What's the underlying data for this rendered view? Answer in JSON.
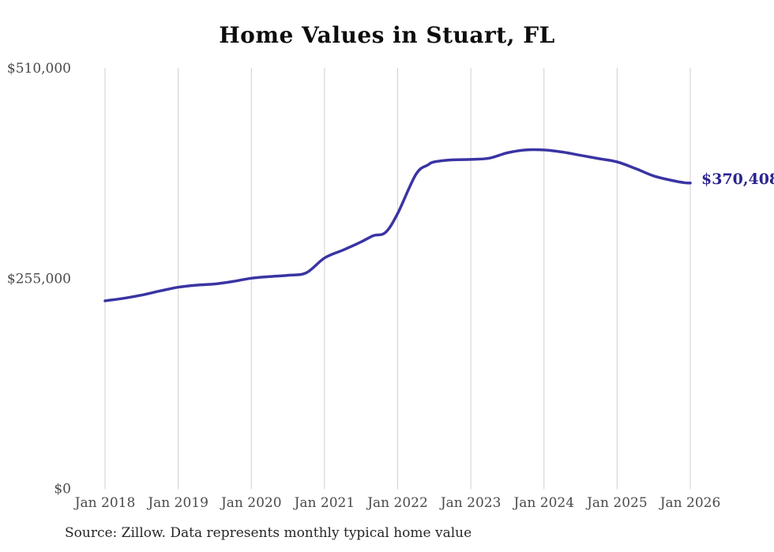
{
  "chart": {
    "title": "Home Values in Stuart, FL",
    "source_note": "Source: Zillow. Data represents monthly typical home value",
    "colors": {
      "line": "#3a34a3",
      "end_label": "#2b2590",
      "gridline": "#cfcfcf",
      "tick_text": "#4a4a4a",
      "title_text": "#0d0d0d",
      "source_text": "#262626",
      "background": "#ffffff"
    }
  },
  "chart_data": {
    "type": "line",
    "title": "Home Values in Stuart, FL",
    "xlabel": "",
    "ylabel": "",
    "x_tick_labels": [
      "Jan 2018",
      "Jan 2019",
      "Jan 2020",
      "Jan 2021",
      "Jan 2022",
      "Jan 2023",
      "Jan 2024",
      "Jan 2025",
      "Jan 2026"
    ],
    "y_ticks": [
      0,
      255000,
      510000
    ],
    "y_tick_labels": [
      "$0",
      "$255,000",
      "$510,000"
    ],
    "ylim": [
      0,
      510000
    ],
    "xlim": [
      "2018-01",
      "2026-01"
    ],
    "grid": "vertical-only",
    "legend": "none",
    "final_value": 370408,
    "final_value_label": "$370,408",
    "series": [
      {
        "name": "Typical home value",
        "points": [
          {
            "date": "2018-01",
            "value": 227500
          },
          {
            "date": "2018-04",
            "value": 230500
          },
          {
            "date": "2018-07",
            "value": 234500
          },
          {
            "date": "2018-10",
            "value": 239500
          },
          {
            "date": "2019-01",
            "value": 244000
          },
          {
            "date": "2019-04",
            "value": 246500
          },
          {
            "date": "2019-07",
            "value": 248000
          },
          {
            "date": "2019-10",
            "value": 251000
          },
          {
            "date": "2020-01",
            "value": 255000
          },
          {
            "date": "2020-04",
            "value": 257000
          },
          {
            "date": "2020-07",
            "value": 258500
          },
          {
            "date": "2020-10",
            "value": 261500
          },
          {
            "date": "2021-01",
            "value": 279500
          },
          {
            "date": "2021-04",
            "value": 289000
          },
          {
            "date": "2021-07",
            "value": 299000
          },
          {
            "date": "2021-09",
            "value": 306500
          },
          {
            "date": "2021-11",
            "value": 310500
          },
          {
            "date": "2022-01",
            "value": 333500
          },
          {
            "date": "2022-04",
            "value": 381000
          },
          {
            "date": "2022-06",
            "value": 392500
          },
          {
            "date": "2022-07",
            "value": 396000
          },
          {
            "date": "2022-10",
            "value": 398500
          },
          {
            "date": "2023-01",
            "value": 399000
          },
          {
            "date": "2023-04",
            "value": 400500
          },
          {
            "date": "2023-07",
            "value": 407000
          },
          {
            "date": "2023-10",
            "value": 410500
          },
          {
            "date": "2024-01",
            "value": 410500
          },
          {
            "date": "2024-04",
            "value": 408000
          },
          {
            "date": "2024-07",
            "value": 404000
          },
          {
            "date": "2024-10",
            "value": 400000
          },
          {
            "date": "2025-01",
            "value": 396000
          },
          {
            "date": "2025-04",
            "value": 388000
          },
          {
            "date": "2025-07",
            "value": 379000
          },
          {
            "date": "2025-10",
            "value": 373500
          },
          {
            "date": "2025-12",
            "value": 370800
          },
          {
            "date": "2026-01",
            "value": 370408
          }
        ]
      }
    ]
  }
}
